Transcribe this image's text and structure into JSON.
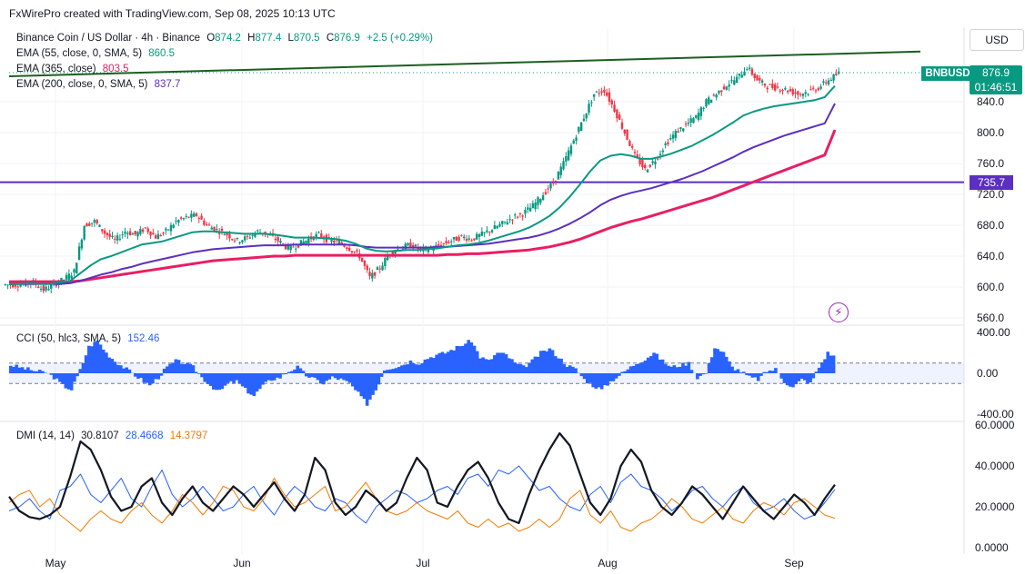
{
  "header": "FxWirePro created with TradingView.com, Sep 08, 2025 10:13 UTC",
  "legend": {
    "title": "Binance Coin / US Dollar · 4h · Binance",
    "ohlc_o_label": "O",
    "ohlc_o": "874.2",
    "ohlc_h_label": "H",
    "ohlc_h": "877.4",
    "ohlc_l_label": "L",
    "ohlc_l": "870.5",
    "ohlc_c_label": "C",
    "ohlc_c": "876.9",
    "change": "+2.5 (+0.29%)",
    "ema55_label": "EMA (55, close, 0, SMA, 5)",
    "ema55_value": "860.5",
    "ema365_label": "EMA (365, close)",
    "ema365_value": "803.5",
    "ema200_label": "EMA (200, close, 0, SMA, 5)",
    "ema200_value": "837.7",
    "cci_label": "CCI (50, hlc3, SMA, 5)",
    "cci_value": "152.46",
    "dmi_label": "DMI (14, 14)",
    "dmi_adx": "30.8107",
    "dmi_plus": "28.4668",
    "dmi_minus": "14.3797"
  },
  "currency_button": "USD",
  "symbol_tag": "BNBUSD",
  "last_price": "876.9",
  "countdown": "01:46:51",
  "level_tag": "735.7",
  "colors": {
    "up": "#089981",
    "down": "#f23645",
    "ema55": "#089981",
    "ema365": "#e91e63",
    "ema200": "#5b2fc0",
    "trendline": "#1b5e20",
    "hline": "#5b2fc0",
    "cci": "#2962ff",
    "adx": "#131722",
    "di_plus": "#2962ff",
    "di_minus": "#f57c00"
  },
  "chart_data": [
    {
      "type": "candlestick",
      "timeframe": "4h",
      "price_axis_ticks": [
        "840.0",
        "800.0",
        "760.0",
        "720.0",
        "680.0",
        "640.0",
        "600.0",
        "560.0"
      ],
      "x_axis_labels": [
        "May",
        "Jun",
        "Jul",
        "Aug",
        "Sep"
      ],
      "approx_closes": [
        603,
        604,
        606,
        596,
        603,
        610,
        620,
        680,
        685,
        670,
        660,
        672,
        668,
        676,
        665,
        672,
        685,
        690,
        693,
        680,
        674,
        668,
        660,
        664,
        672,
        668,
        660,
        650,
        655,
        662,
        668,
        660,
        658,
        650,
        640,
        612,
        625,
        645,
        650,
        655,
        648,
        650,
        655,
        660,
        665,
        662,
        668,
        675,
        682,
        690,
        695,
        705,
        720,
        735,
        760,
        790,
        820,
        850,
        855,
        830,
        800,
        770,
        752,
        765,
        785,
        800,
        810,
        820,
        840,
        850,
        862,
        870,
        885,
        868,
        860,
        858,
        855,
        850,
        853,
        858,
        868,
        876.9
      ],
      "approx_ema55": [
        604,
        604,
        605,
        604,
        604,
        606,
        608,
        618,
        628,
        636,
        640,
        645,
        650,
        655,
        657,
        659,
        663,
        667,
        671,
        672,
        672,
        671,
        670,
        669,
        669,
        669,
        668,
        666,
        664,
        664,
        664,
        663,
        662,
        660,
        656,
        650,
        647,
        646,
        647,
        648,
        648,
        649,
        650,
        652,
        654,
        655,
        657,
        660,
        664,
        668,
        672,
        677,
        684,
        692,
        703,
        717,
        733,
        750,
        764,
        770,
        772,
        770,
        766,
        766,
        769,
        773,
        778,
        783,
        790,
        797,
        805,
        813,
        822,
        827,
        831,
        834,
        836,
        838,
        840,
        842,
        846,
        860.5
      ],
      "approx_ema200": [
        604,
        604,
        604,
        604,
        604,
        604,
        605,
        608,
        612,
        616,
        619,
        623,
        626,
        630,
        633,
        636,
        639,
        642,
        645,
        647,
        649,
        650,
        651,
        652,
        653,
        654,
        654,
        654,
        655,
        655,
        655,
        655,
        655,
        655,
        654,
        652,
        651,
        651,
        651,
        651,
        651,
        651,
        652,
        652,
        653,
        654,
        655,
        656,
        658,
        660,
        662,
        664,
        667,
        671,
        676,
        682,
        689,
        697,
        706,
        713,
        718,
        722,
        725,
        728,
        732,
        736,
        740,
        745,
        750,
        756,
        762,
        768,
        775,
        781,
        786,
        791,
        796,
        800,
        804,
        808,
        812,
        837.7
      ],
      "approx_ema365": [
        607,
        607,
        607,
        607,
        607,
        607,
        607,
        608,
        610,
        612,
        614,
        616,
        618,
        620,
        622,
        624,
        626,
        628,
        630,
        632,
        634,
        635,
        636,
        637,
        638,
        639,
        640,
        640,
        641,
        641,
        641,
        641,
        641,
        641,
        641,
        641,
        641,
        641,
        641,
        641,
        641,
        641,
        641,
        642,
        642,
        643,
        643,
        644,
        645,
        646,
        647,
        648,
        650,
        652,
        655,
        658,
        662,
        667,
        672,
        677,
        681,
        685,
        688,
        692,
        696,
        700,
        704,
        708,
        712,
        716,
        721,
        726,
        731,
        736,
        741,
        746,
        751,
        756,
        761,
        766,
        771,
        803.5
      ],
      "trendline": {
        "start": 873,
        "end": 905
      },
      "horizontal_level": 735.7
    },
    {
      "type": "histogram",
      "name": "CCI (50, hlc3, SMA, 5)",
      "axis_ticks": [
        "400.00",
        "0.00",
        "-400.00"
      ],
      "band_levels": [
        100,
        -100
      ],
      "approx_values": [
        80,
        60,
        40,
        20,
        10,
        -40,
        -120,
        -160,
        30,
        260,
        320,
        200,
        120,
        60,
        0,
        -60,
        -120,
        -40,
        60,
        120,
        100,
        60,
        -40,
        -120,
        -180,
        -100,
        -80,
        -160,
        -220,
        -120,
        -60,
        -40,
        20,
        60,
        -20,
        -60,
        -100,
        -40,
        -60,
        -100,
        -200,
        -300,
        -160,
        40,
        60,
        80,
        120,
        100,
        150,
        180,
        200,
        240,
        280,
        320,
        160,
        120,
        200,
        180,
        100,
        60,
        120,
        200,
        240,
        160,
        80,
        40,
        -60,
        -120,
        -160,
        -80,
        -20,
        40,
        100,
        140,
        200,
        120,
        60,
        80,
        100,
        -40,
        0,
        260,
        200,
        60,
        20,
        -40,
        -60,
        20,
        40,
        -80,
        -140,
        -60,
        -100,
        60,
        200,
        152.46
      ]
    },
    {
      "type": "line",
      "name": "DMI (14, 14)",
      "axis_ticks": [
        "60.0000",
        "40.0000",
        "20.0000",
        "0.0000"
      ],
      "ylim": [
        0,
        60
      ],
      "series": [
        {
          "name": "ADX",
          "values": [
            25,
            18,
            15,
            14,
            16,
            20,
            35,
            52,
            48,
            38,
            25,
            18,
            20,
            30,
            34,
            22,
            16,
            24,
            30,
            22,
            18,
            24,
            30,
            26,
            20,
            26,
            32,
            24,
            18,
            26,
            44,
            38,
            22,
            16,
            20,
            28,
            24,
            18,
            22,
            34,
            44,
            38,
            22,
            20,
            30,
            38,
            42,
            34,
            22,
            14,
            12,
            26,
            38,
            48,
            56,
            50,
            36,
            22,
            16,
            24,
            40,
            48,
            42,
            28,
            20,
            16,
            22,
            30,
            26,
            20,
            14,
            22,
            30,
            24,
            18,
            14,
            20,
            26,
            22,
            16,
            24,
            30.8107
          ]
        },
        {
          "name": "+DI",
          "values": [
            18,
            20,
            24,
            18,
            14,
            28,
            30,
            36,
            26,
            22,
            28,
            34,
            24,
            20,
            30,
            38,
            26,
            20,
            24,
            30,
            24,
            18,
            20,
            26,
            30,
            22,
            16,
            24,
            30,
            26,
            20,
            18,
            24,
            22,
            16,
            12,
            20,
            24,
            28,
            26,
            22,
            24,
            28,
            30,
            26,
            34,
            36,
            30,
            38,
            36,
            40,
            34,
            28,
            30,
            24,
            20,
            18,
            26,
            30,
            22,
            32,
            36,
            30,
            28,
            24,
            18,
            22,
            28,
            30,
            24,
            20,
            26,
            30,
            22,
            18,
            20,
            24,
            18,
            14,
            16,
            22,
            28.4668
          ]
        },
        {
          "name": "-DI",
          "values": [
            22,
            26,
            28,
            20,
            24,
            16,
            12,
            8,
            14,
            18,
            14,
            12,
            18,
            22,
            16,
            12,
            18,
            26,
            22,
            16,
            22,
            30,
            28,
            20,
            18,
            24,
            34,
            26,
            20,
            22,
            26,
            30,
            18,
            20,
            26,
            32,
            24,
            18,
            16,
            18,
            22,
            18,
            16,
            14,
            18,
            12,
            10,
            14,
            10,
            12,
            8,
            10,
            14,
            10,
            14,
            24,
            28,
            16,
            12,
            18,
            10,
            8,
            12,
            14,
            18,
            24,
            20,
            14,
            12,
            16,
            20,
            14,
            12,
            18,
            22,
            20,
            16,
            22,
            24,
            20,
            16,
            14.3797
          ]
        }
      ]
    }
  ]
}
